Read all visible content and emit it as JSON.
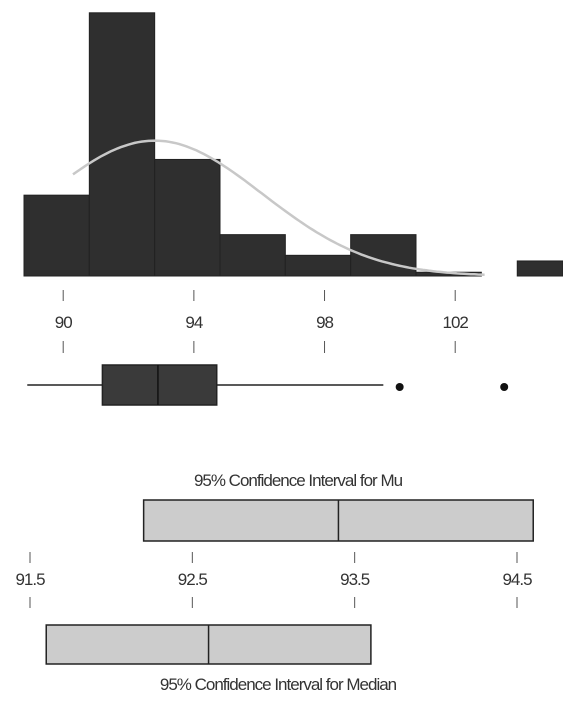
{
  "chart_data": [
    {
      "type": "histogram",
      "title": "",
      "xlabel": "",
      "ylabel": "",
      "xlim": [
        88.8,
        105.3
      ],
      "ylim": [
        0,
        16
      ],
      "bins": [
        {
          "start": 88.8,
          "end": 90.8,
          "count": 4.3
        },
        {
          "start": 90.8,
          "end": 92.8,
          "count": 14.0
        },
        {
          "start": 92.8,
          "end": 94.8,
          "count": 6.2
        },
        {
          "start": 94.8,
          "end": 96.8,
          "count": 2.2
        },
        {
          "start": 96.8,
          "end": 98.8,
          "count": 1.1
        },
        {
          "start": 98.8,
          "end": 100.8,
          "count": 2.2
        },
        {
          "start": 100.8,
          "end": 102.8,
          "count": 0.2
        },
        {
          "start": 103.9,
          "end": 105.3,
          "count": 0.8
        }
      ],
      "normal_curve": {
        "mean": 92.8,
        "sd": 3.3,
        "peak": 7.2
      },
      "x_ticks": [
        "90",
        "94",
        "98",
        "102"
      ],
      "x_tick_values": [
        90,
        94,
        98,
        102
      ]
    },
    {
      "type": "boxplot",
      "whisker_low": 88.9,
      "q1": 91.2,
      "median": 92.9,
      "q3": 94.7,
      "whisker_high": 99.8,
      "outliers": [
        100.3,
        103.5
      ]
    },
    {
      "type": "interval",
      "label": "95% Confidence Interval for Mu",
      "lower": 92.2,
      "center": 93.4,
      "upper": 94.6
    },
    {
      "type": "interval",
      "label": "95% Confidence Interval for Median",
      "lower": 91.6,
      "center": 92.6,
      "upper": 93.6,
      "x_ticks": [
        "91.5",
        "92.5",
        "93.5",
        "94.5"
      ],
      "x_tick_values": [
        91.5,
        92.5,
        93.5,
        94.5
      ]
    }
  ],
  "colors": {
    "dark_fill": "#2f2f2f",
    "box_fill": "#3a3a3a",
    "ci_fill": "#cccccc",
    "outline": "#222222",
    "curve": "#c8c8c8",
    "text": "#333333",
    "tick": "#555555"
  }
}
